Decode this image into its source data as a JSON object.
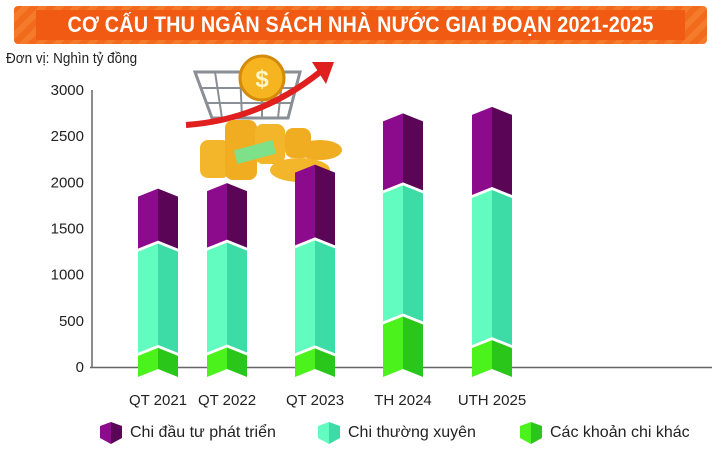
{
  "chart_data": {
    "type": "bar",
    "stacked": true,
    "title": "CƠ CẤU THU NGÂN SÁCH NHÀ NƯỚC GIAI ĐOẠN 2021-2025",
    "unit_label": "Đơn vị: Nghìn tỷ đồng",
    "categories": [
      "QT 2021",
      "QT 2022",
      "QT 2023",
      "TH 2024",
      "UTH 2025"
    ],
    "series": [
      {
        "name": "Các khoản chi khác",
        "values": [
          120,
          125,
          115,
          460,
          205
        ],
        "color": "#4cf21c",
        "dark": "#2ac61a"
      },
      {
        "name": "Chi thường xuyên",
        "values": [
          1130,
          1135,
          1170,
          1420,
          1625
        ],
        "color": "#62fcc0",
        "dark": "#3ddca6"
      },
      {
        "name": "Chi đầu tư phát triển",
        "values": [
          595,
          645,
          820,
          780,
          900
        ],
        "color": "#8c0a8c",
        "dark": "#5a0556"
      }
    ],
    "legend_order": [
      2,
      1,
      0
    ],
    "yticks": [
      "0",
      "500",
      "1000",
      "1500",
      "2000",
      "2500",
      "3000"
    ],
    "ylim": [
      0,
      3000
    ],
    "legend_position": "bottom"
  }
}
